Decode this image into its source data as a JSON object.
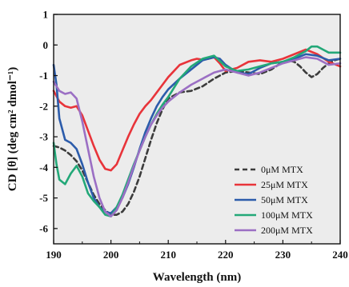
{
  "chart_data": {
    "type": "line",
    "title": "",
    "xlabel": "Wavelength (nm)",
    "ylabel": "CD [θ] (deg cm² dmol⁻¹)",
    "xlim": [
      190,
      240
    ],
    "ylim": [
      -6.5,
      1
    ],
    "xticks": [
      190,
      200,
      210,
      220,
      230,
      240
    ],
    "yticks": [
      -6,
      -5,
      -4,
      -3,
      -2,
      -1,
      0,
      1
    ],
    "grid": false,
    "legend_position": "bottom-right",
    "background_color": "#ececec",
    "series": [
      {
        "name": "0μM MTX",
        "color": "#3c3c3c",
        "dash": true,
        "x": [
          190,
          191,
          192,
          193,
          194,
          195,
          196,
          197,
          198,
          199,
          200,
          201,
          202,
          203,
          204,
          205,
          206,
          207,
          208,
          209,
          210,
          212,
          214,
          216,
          218,
          220,
          222,
          224,
          226,
          228,
          230,
          231,
          232,
          233,
          234,
          235,
          236,
          237,
          238,
          239,
          240
        ],
        "y": [
          -3.3,
          -3.35,
          -3.45,
          -3.6,
          -3.8,
          -4.1,
          -4.5,
          -4.9,
          -5.2,
          -5.4,
          -5.55,
          -5.55,
          -5.45,
          -5.2,
          -4.8,
          -4.3,
          -3.7,
          -3.1,
          -2.55,
          -2.1,
          -1.75,
          -1.55,
          -1.5,
          -1.35,
          -1.1,
          -0.9,
          -0.85,
          -0.9,
          -0.95,
          -0.8,
          -0.55,
          -0.5,
          -0.55,
          -0.7,
          -0.9,
          -1.05,
          -0.95,
          -0.75,
          -0.6,
          -0.5,
          -0.45
        ]
      },
      {
        "name": "25μM MTX",
        "color": "#e8343a",
        "dash": false,
        "x": [
          190,
          191,
          192,
          193,
          194,
          195,
          196,
          197,
          198,
          199,
          200,
          201,
          202,
          203,
          204,
          205,
          206,
          207,
          208,
          209,
          210,
          212,
          214,
          215,
          216,
          217,
          218,
          219,
          220,
          222,
          224,
          226,
          228,
          230,
          232,
          234,
          236,
          238,
          240
        ],
        "y": [
          -1.5,
          -1.85,
          -2.0,
          -2.05,
          -2.0,
          -2.3,
          -2.8,
          -3.3,
          -3.75,
          -4.05,
          -4.1,
          -3.9,
          -3.45,
          -3.0,
          -2.6,
          -2.25,
          -2.0,
          -1.8,
          -1.55,
          -1.3,
          -1.05,
          -0.65,
          -0.5,
          -0.45,
          -0.48,
          -0.45,
          -0.4,
          -0.6,
          -0.85,
          -0.75,
          -0.55,
          -0.5,
          -0.55,
          -0.45,
          -0.3,
          -0.15,
          -0.3,
          -0.55,
          -0.7
        ]
      },
      {
        "name": "50μM MTX",
        "color": "#2c5cab",
        "dash": false,
        "x": [
          190,
          190.5,
          191,
          192,
          193,
          194,
          195,
          196,
          197,
          198,
          199,
          200,
          201,
          202,
          203,
          204,
          205,
          206,
          207,
          208,
          209,
          210,
          212,
          214,
          216,
          218,
          219,
          220,
          222,
          224,
          226,
          228,
          230,
          232,
          234,
          236,
          238,
          240
        ],
        "y": [
          -0.65,
          -1.3,
          -2.4,
          -3.1,
          -3.2,
          -3.4,
          -3.9,
          -4.5,
          -5.0,
          -5.3,
          -5.45,
          -5.5,
          -5.3,
          -5.0,
          -4.55,
          -4.0,
          -3.4,
          -2.85,
          -2.4,
          -2.0,
          -1.7,
          -1.45,
          -1.1,
          -0.8,
          -0.5,
          -0.4,
          -0.45,
          -0.65,
          -0.9,
          -0.95,
          -0.75,
          -0.6,
          -0.55,
          -0.45,
          -0.3,
          -0.35,
          -0.5,
          -0.45
        ]
      },
      {
        "name": "100μM MTX",
        "color": "#23a878",
        "dash": false,
        "x": [
          190,
          190.5,
          191,
          192,
          193,
          194,
          195,
          196,
          197,
          198,
          199,
          200,
          201,
          202,
          203,
          204,
          205,
          206,
          207,
          208,
          209,
          210,
          212,
          214,
          216,
          218,
          220,
          222,
          224,
          226,
          228,
          230,
          232,
          234,
          235,
          236,
          237,
          238,
          239,
          240
        ],
        "y": [
          -3.2,
          -3.9,
          -4.4,
          -4.55,
          -4.2,
          -3.95,
          -4.3,
          -4.85,
          -5.1,
          -5.3,
          -5.55,
          -5.6,
          -5.3,
          -4.9,
          -4.4,
          -3.9,
          -3.45,
          -3.0,
          -2.6,
          -2.25,
          -1.95,
          -1.7,
          -1.1,
          -0.7,
          -0.45,
          -0.35,
          -0.7,
          -0.85,
          -0.8,
          -0.7,
          -0.6,
          -0.55,
          -0.4,
          -0.2,
          -0.05,
          -0.05,
          -0.15,
          -0.25,
          -0.25,
          -0.25
        ]
      },
      {
        "name": "200μM MTX",
        "color": "#9b6fc4",
        "dash": false,
        "x": [
          190,
          191,
          192,
          193,
          194,
          195,
          196,
          197,
          198,
          199,
          200,
          201,
          202,
          203,
          204,
          205,
          206,
          207,
          208,
          209,
          210,
          212,
          214,
          216,
          218,
          220,
          222,
          224,
          226,
          228,
          230,
          232,
          234,
          236,
          238,
          240
        ],
        "y": [
          -1.2,
          -1.5,
          -1.6,
          -1.55,
          -1.75,
          -2.5,
          -3.4,
          -4.3,
          -5.0,
          -5.45,
          -5.6,
          -5.4,
          -5.0,
          -4.5,
          -3.95,
          -3.45,
          -3.0,
          -2.6,
          -2.3,
          -2.05,
          -1.85,
          -1.55,
          -1.3,
          -1.1,
          -0.9,
          -0.8,
          -0.9,
          -1.0,
          -0.9,
          -0.75,
          -0.6,
          -0.5,
          -0.4,
          -0.45,
          -0.65,
          -0.6
        ]
      }
    ]
  }
}
